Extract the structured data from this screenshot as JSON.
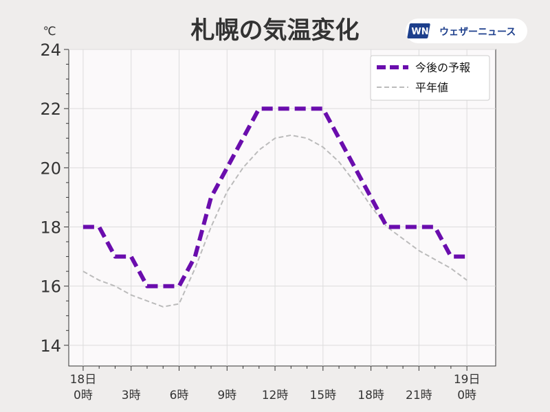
{
  "chart_data": {
    "type": "line",
    "title": "札幌の気温変化",
    "unit": "℃",
    "ylim": [
      13.3,
      24
    ],
    "y_ticks": [
      14,
      16,
      18,
      20,
      22,
      24
    ],
    "xlim": [
      -0.9,
      25.8
    ],
    "x_ticks": [
      {
        "x": 0,
        "line1": "18日",
        "line2": "0時"
      },
      {
        "x": 3,
        "line1": "",
        "line2": "3時"
      },
      {
        "x": 6,
        "line1": "",
        "line2": "6時"
      },
      {
        "x": 9,
        "line1": "",
        "line2": "9時"
      },
      {
        "x": 12,
        "line1": "",
        "line2": "12時"
      },
      {
        "x": 15,
        "line1": "",
        "line2": "15時"
      },
      {
        "x": 18,
        "line1": "",
        "line2": "18時"
      },
      {
        "x": 21,
        "line1": "",
        "line2": "21時"
      },
      {
        "x": 24,
        "line1": "19日",
        "line2": "0時"
      }
    ],
    "minor_x_ticks": [
      1,
      2,
      4,
      5,
      7,
      8,
      10,
      11,
      13,
      14,
      16,
      17,
      19,
      20,
      22,
      23
    ],
    "grid": true,
    "legend_position": "top-right",
    "series": [
      {
        "name": "今後の予報",
        "color": "#6a0dad",
        "style": "thick-dashed",
        "x": [
          0,
          1,
          2,
          3,
          4,
          5,
          6,
          7,
          8,
          9,
          10,
          11,
          12,
          13,
          14,
          15,
          16,
          17,
          18,
          19,
          20,
          21,
          22,
          23,
          24
        ],
        "values": [
          18,
          18,
          17,
          17,
          16,
          16,
          16,
          17,
          19,
          20,
          21,
          22,
          22,
          22,
          22,
          22,
          21,
          20,
          19,
          18,
          18,
          18,
          18,
          17,
          17
        ]
      },
      {
        "name": "平年値",
        "color": "#bbbbbb",
        "style": "thin-dashed",
        "x": [
          0,
          1,
          2,
          3,
          4,
          5,
          6,
          7,
          8,
          9,
          10,
          11,
          12,
          13,
          14,
          15,
          16,
          17,
          18,
          19,
          20,
          21,
          22,
          23,
          24
        ],
        "values": [
          16.5,
          16.2,
          16.0,
          15.7,
          15.5,
          15.3,
          15.4,
          16.6,
          18.0,
          19.2,
          20.0,
          20.6,
          21.0,
          21.1,
          21.0,
          20.7,
          20.2,
          19.5,
          18.7,
          18.0,
          17.6,
          17.2,
          16.9,
          16.6,
          16.2
        ]
      }
    ]
  },
  "branding": {
    "logo_mark": "WN",
    "logo_text": "ウェザーニュース"
  }
}
